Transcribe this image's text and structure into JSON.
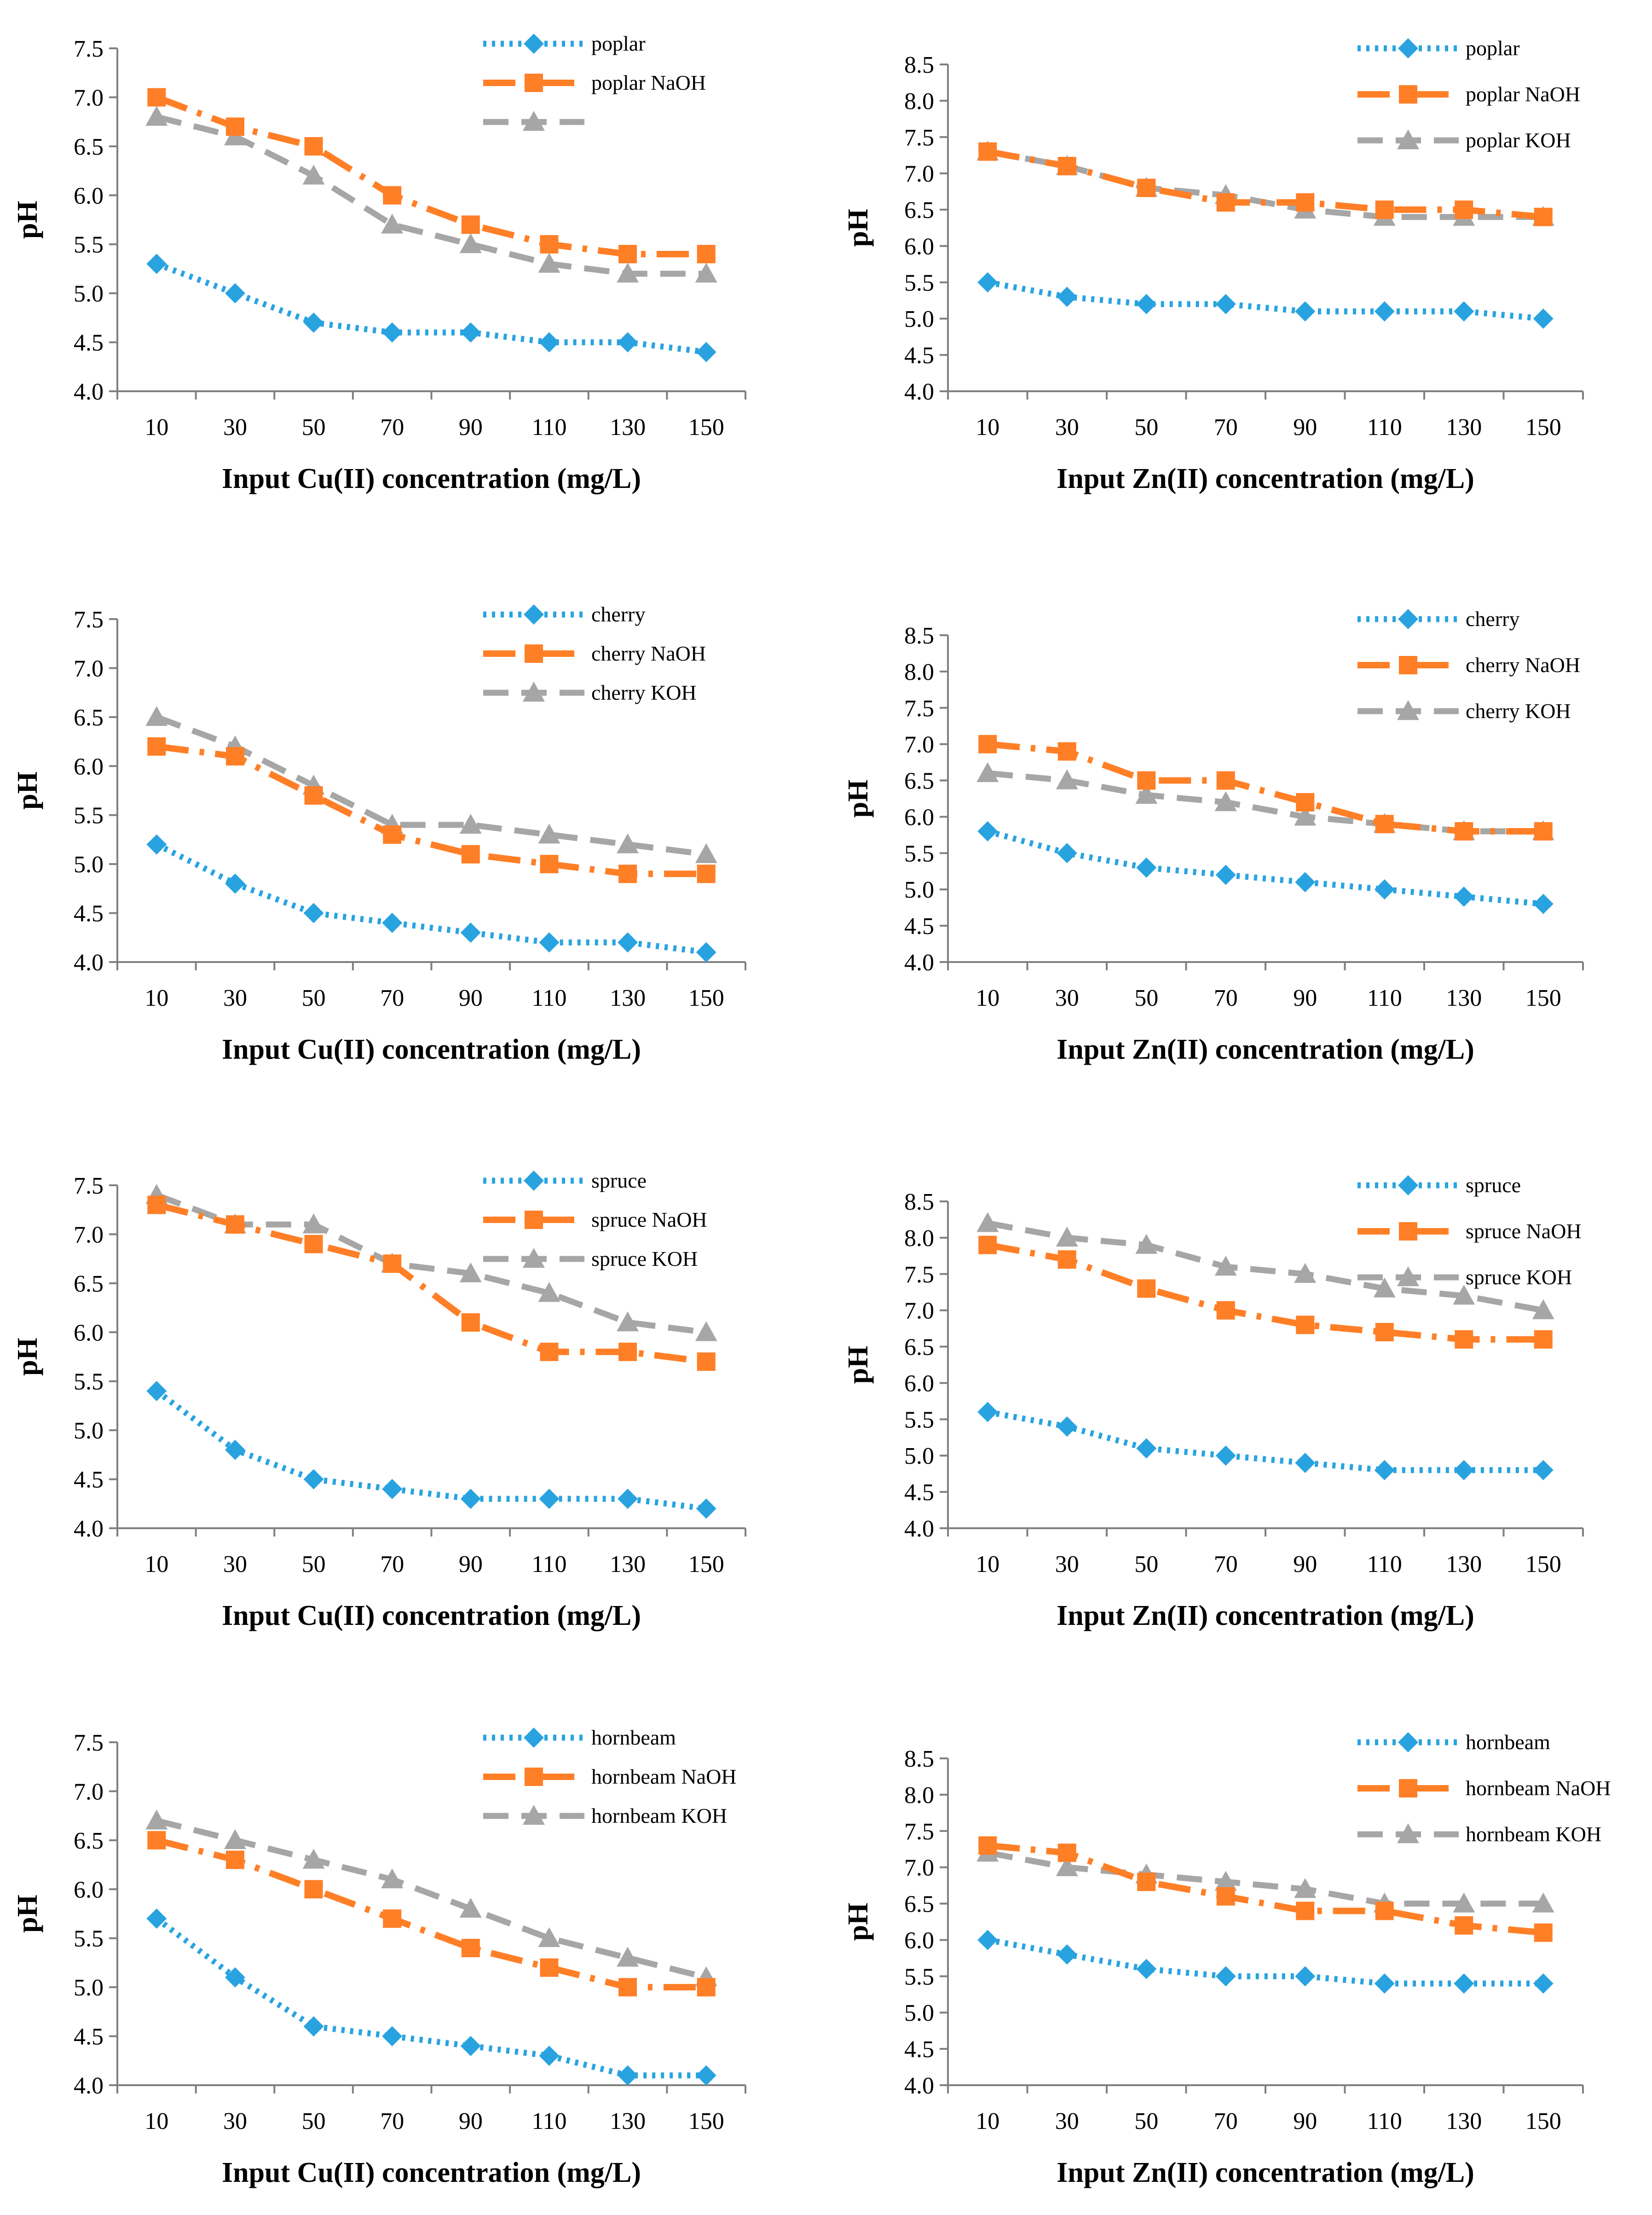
{
  "style": {
    "series_colors": [
      "#29A3E0",
      "#FF7F27",
      "#A6A6A6"
    ],
    "axis_color": "#7F7F7F"
  },
  "chart_data": [
    {
      "type": "line",
      "panel": "poplar-cu",
      "xlabel": "Input Cu(II) concentration (mg/L)",
      "ylabel": "pH",
      "categories": [
        "10",
        "30",
        "50",
        "70",
        "90",
        "110",
        "130",
        "150"
      ],
      "yticks": [
        "4.0",
        "4.5",
        "5.0",
        "5.5",
        "6.0",
        "6.5",
        "7.0",
        "7.5"
      ],
      "ylim": [
        4.0,
        7.5
      ],
      "legend_position": "top-right",
      "series": [
        {
          "name": "poplar",
          "values": [
            5.3,
            5.0,
            4.7,
            4.6,
            4.6,
            4.5,
            4.5,
            4.4
          ]
        },
        {
          "name": "poplar NaOH",
          "values": [
            7.0,
            6.7,
            6.5,
            6.0,
            5.7,
            5.5,
            5.4,
            5.4
          ]
        },
        {
          "name": "",
          "values": [
            6.8,
            6.6,
            6.2,
            5.7,
            5.5,
            5.3,
            5.2,
            5.2
          ]
        }
      ]
    },
    {
      "type": "line",
      "panel": "poplar-zn",
      "xlabel": "Input Zn(II) concentration (mg/L)",
      "ylabel": "pH",
      "categories": [
        "10",
        "30",
        "50",
        "70",
        "90",
        "110",
        "130",
        "150"
      ],
      "yticks": [
        "4.0",
        "4.5",
        "5.0",
        "5.5",
        "6.0",
        "6.5",
        "7.0",
        "7.5",
        "8.0",
        "8.5"
      ],
      "ylim": [
        4.0,
        8.5
      ],
      "legend_position": "top-right",
      "series": [
        {
          "name": "poplar",
          "values": [
            5.5,
            5.3,
            5.2,
            5.2,
            5.1,
            5.1,
            5.1,
            5.0
          ]
        },
        {
          "name": "poplar NaOH",
          "values": [
            7.3,
            7.1,
            6.8,
            6.6,
            6.6,
            6.5,
            6.5,
            6.4
          ]
        },
        {
          "name": "poplar KOH",
          "values": [
            7.3,
            7.1,
            6.8,
            6.7,
            6.5,
            6.4,
            6.4,
            6.4
          ]
        }
      ]
    },
    {
      "type": "line",
      "panel": "cherry-cu",
      "xlabel": "Input Cu(II) concentration (mg/L)",
      "ylabel": "pH",
      "categories": [
        "10",
        "30",
        "50",
        "70",
        "90",
        "110",
        "130",
        "150"
      ],
      "yticks": [
        "4.0",
        "4.5",
        "5.0",
        "5.5",
        "6.0",
        "6.5",
        "7.0",
        "7.5"
      ],
      "ylim": [
        4.0,
        7.5
      ],
      "legend_position": "top-right",
      "series": [
        {
          "name": "cherry",
          "values": [
            5.2,
            4.8,
            4.5,
            4.4,
            4.3,
            4.2,
            4.2,
            4.1
          ]
        },
        {
          "name": "cherry NaOH",
          "values": [
            6.2,
            6.1,
            5.7,
            5.3,
            5.1,
            5.0,
            4.9,
            4.9
          ]
        },
        {
          "name": "cherry KOH",
          "values": [
            6.5,
            6.2,
            5.8,
            5.4,
            5.4,
            5.3,
            5.2,
            5.1
          ]
        }
      ]
    },
    {
      "type": "line",
      "panel": "cherry-zn",
      "xlabel": "Input Zn(II) concentration (mg/L)",
      "ylabel": "pH",
      "categories": [
        "10",
        "30",
        "50",
        "70",
        "90",
        "110",
        "130",
        "150"
      ],
      "yticks": [
        "4.0",
        "4.5",
        "5.0",
        "5.5",
        "6.0",
        "6.5",
        "7.0",
        "7.5",
        "8.0",
        "8.5"
      ],
      "ylim": [
        4.0,
        8.5
      ],
      "legend_position": "top-right",
      "series": [
        {
          "name": "cherry",
          "values": [
            5.8,
            5.5,
            5.3,
            5.2,
            5.1,
            5.0,
            4.9,
            4.8
          ]
        },
        {
          "name": "cherry NaOH",
          "values": [
            7.0,
            6.9,
            6.5,
            6.5,
            6.2,
            5.9,
            5.8,
            5.8
          ]
        },
        {
          "name": "cherry KOH",
          "values": [
            6.6,
            6.5,
            6.3,
            6.2,
            6.0,
            5.9,
            5.8,
            5.8
          ]
        }
      ]
    },
    {
      "type": "line",
      "panel": "spruce-cu",
      "xlabel": "Input Cu(II) concentration (mg/L)",
      "ylabel": "pH",
      "categories": [
        "10",
        "30",
        "50",
        "70",
        "90",
        "110",
        "130",
        "150"
      ],
      "yticks": [
        "4.0",
        "4.5",
        "5.0",
        "5.5",
        "6.0",
        "6.5",
        "7.0",
        "7.5"
      ],
      "ylim": [
        4.0,
        7.5
      ],
      "legend_position": "top-right",
      "series": [
        {
          "name": "spruce",
          "values": [
            5.4,
            4.8,
            4.5,
            4.4,
            4.3,
            4.3,
            4.3,
            4.2
          ]
        },
        {
          "name": "spruce NaOH",
          "values": [
            7.3,
            7.1,
            6.9,
            6.7,
            6.1,
            5.8,
            5.8,
            5.7
          ]
        },
        {
          "name": "spruce KOH",
          "values": [
            7.4,
            7.1,
            7.1,
            6.7,
            6.6,
            6.4,
            6.1,
            6.0
          ]
        }
      ]
    },
    {
      "type": "line",
      "panel": "spruce-zn",
      "xlabel": "Input Zn(II) concentration (mg/L)",
      "ylabel": "pH",
      "categories": [
        "10",
        "30",
        "50",
        "70",
        "90",
        "110",
        "130",
        "150"
      ],
      "yticks": [
        "4.0",
        "4.5",
        "5.0",
        "5.5",
        "6.0",
        "6.5",
        "7.0",
        "7.5",
        "8.0",
        "8.5"
      ],
      "ylim": [
        4.0,
        8.5
      ],
      "legend_position": "top-right",
      "series": [
        {
          "name": "spruce",
          "values": [
            5.6,
            5.4,
            5.1,
            5.0,
            4.9,
            4.8,
            4.8,
            4.8
          ]
        },
        {
          "name": "spruce NaOH",
          "values": [
            7.9,
            7.7,
            7.3,
            7.0,
            6.8,
            6.7,
            6.6,
            6.6
          ]
        },
        {
          "name": "spruce KOH",
          "values": [
            8.2,
            8.0,
            7.9,
            7.6,
            7.5,
            7.3,
            7.2,
            7.0
          ]
        }
      ]
    },
    {
      "type": "line",
      "panel": "hornbeam-cu",
      "xlabel": "Input Cu(II) concentration (mg/L)",
      "ylabel": "pH",
      "categories": [
        "10",
        "30",
        "50",
        "70",
        "90",
        "110",
        "130",
        "150"
      ],
      "yticks": [
        "4.0",
        "4.5",
        "5.0",
        "5.5",
        "6.0",
        "6.5",
        "7.0",
        "7.5"
      ],
      "ylim": [
        4.0,
        7.5
      ],
      "legend_position": "top-right",
      "series": [
        {
          "name": "hornbeam",
          "values": [
            5.7,
            5.1,
            4.6,
            4.5,
            4.4,
            4.3,
            4.1,
            4.1
          ]
        },
        {
          "name": "hornbeam NaOH",
          "values": [
            6.5,
            6.3,
            6.0,
            5.7,
            5.4,
            5.2,
            5.0,
            5.0
          ]
        },
        {
          "name": "hornbeam KOH",
          "values": [
            6.7,
            6.5,
            6.3,
            6.1,
            5.8,
            5.5,
            5.3,
            5.1
          ]
        }
      ]
    },
    {
      "type": "line",
      "panel": "hornbeam-zn",
      "xlabel": "Input Zn(II) concentration (mg/L)",
      "ylabel": "pH",
      "categories": [
        "10",
        "30",
        "50",
        "70",
        "90",
        "110",
        "130",
        "150"
      ],
      "yticks": [
        "4.0",
        "4.5",
        "5.0",
        "5.5",
        "6.0",
        "6.5",
        "7.0",
        "7.5",
        "8.0",
        "8.5"
      ],
      "ylim": [
        4.0,
        8.5
      ],
      "legend_position": "top-right",
      "series": [
        {
          "name": "hornbeam",
          "values": [
            6.0,
            5.8,
            5.6,
            5.5,
            5.5,
            5.4,
            5.4,
            5.4
          ]
        },
        {
          "name": "hornbeam NaOH",
          "values": [
            7.3,
            7.2,
            6.8,
            6.6,
            6.4,
            6.4,
            6.2,
            6.1
          ]
        },
        {
          "name": "hornbeam KOH",
          "values": [
            7.2,
            7.0,
            6.9,
            6.8,
            6.7,
            6.5,
            6.5,
            6.5
          ]
        }
      ]
    }
  ]
}
